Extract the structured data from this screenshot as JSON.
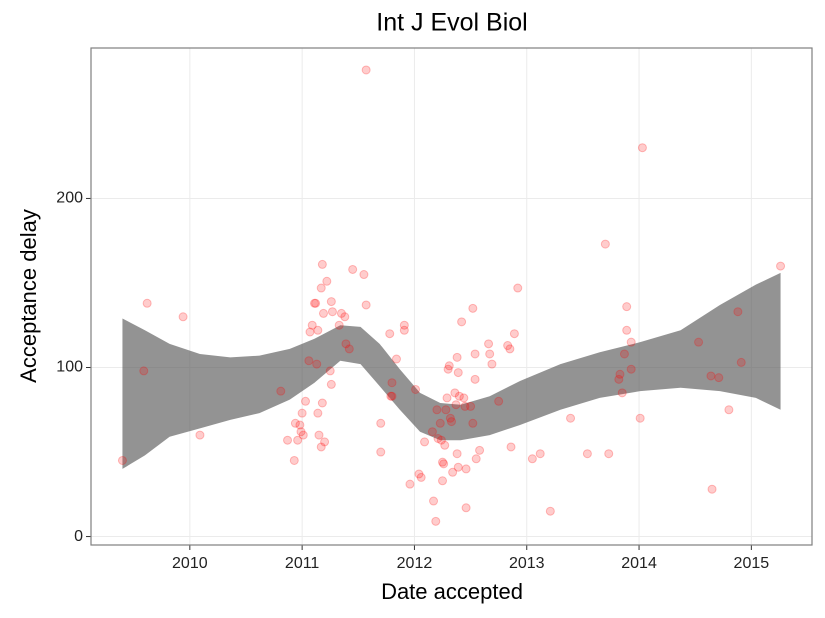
{
  "chart_data": {
    "type": "scatter",
    "title": "Int J Evol Biol",
    "x_label": "Date accepted",
    "y_label": "Acceptance delay",
    "x": [
      2009.4,
      2009.59,
      2009.62,
      2009.94,
      2010.09,
      2010.81,
      2010.87,
      2010.93,
      2010.94,
      2010.96,
      2010.98,
      2011.0,
      2010.99,
      2011.01,
      2011.03,
      2011.06,
      2011.07,
      2011.09,
      2011.11,
      2011.12,
      2011.13,
      2011.14,
      2011.14,
      2011.15,
      2011.17,
      2011.17,
      2011.18,
      2011.18,
      2011.19,
      2011.2,
      2011.22,
      2011.26,
      2011.27,
      2011.25,
      2011.26,
      2011.33,
      2011.35,
      2011.38,
      2011.39,
      2011.42,
      2011.45,
      2011.55,
      2011.57,
      2011.57,
      2011.7,
      2011.7,
      2011.78,
      2011.8,
      2011.79,
      2011.8,
      2011.84,
      2011.91,
      2011.91,
      2011.96,
      2012.01,
      2012.04,
      2012.06,
      2012.09,
      2012.16,
      2012.17,
      2012.19,
      2012.2,
      2012.21,
      2012.23,
      2012.24,
      2012.25,
      2012.26,
      2012.25,
      2012.27,
      2012.28,
      2012.29,
      2012.3,
      2012.31,
      2012.32,
      2012.33,
      2012.34,
      2012.36,
      2012.37,
      2012.38,
      2012.38,
      2012.39,
      2012.39,
      2012.4,
      2012.42,
      2012.44,
      2012.45,
      2012.46,
      2012.46,
      2012.5,
      2012.52,
      2012.52,
      2012.54,
      2012.54,
      2012.55,
      2012.58,
      2012.66,
      2012.67,
      2012.69,
      2012.75,
      2012.83,
      2012.85,
      2012.86,
      2012.89,
      2012.92,
      2013.05,
      2013.12,
      2013.21,
      2013.39,
      2013.54,
      2013.7,
      2013.73,
      2013.82,
      2013.83,
      2013.85,
      2013.87,
      2013.89,
      2013.89,
      2013.93,
      2013.93,
      2014.01,
      2014.03,
      2014.53,
      2014.64,
      2014.65,
      2014.71,
      2014.8,
      2014.88,
      2014.91,
      2015.26
    ],
    "values": [
      45,
      98,
      138,
      130,
      60,
      86,
      57,
      45,
      67,
      57,
      66,
      73,
      62,
      60,
      80,
      104,
      121,
      125,
      138,
      138,
      102,
      122,
      73,
      60,
      53,
      147,
      161,
      79,
      132,
      56,
      151,
      139,
      133,
      98,
      90,
      125,
      132,
      130,
      114,
      111,
      158,
      155,
      137,
      276,
      67,
      50,
      120,
      91,
      83,
      83,
      105,
      125,
      122,
      31,
      87,
      37,
      35,
      56,
      62,
      21,
      9,
      75,
      58,
      67,
      57,
      44,
      43,
      33,
      54,
      75,
      82,
      99,
      101,
      70,
      68,
      38,
      85,
      78,
      49,
      106,
      97,
      41,
      83,
      127,
      82,
      77,
      40,
      17,
      77,
      135,
      67,
      108,
      93,
      46,
      51,
      114,
      108,
      102,
      80,
      113,
      111,
      53,
      120,
      147,
      46,
      49,
      15,
      70,
      49,
      173,
      49,
      93,
      96,
      85,
      108,
      122,
      136,
      115,
      99,
      70,
      230,
      115,
      95,
      28,
      94,
      75,
      133,
      103,
      160
    ],
    "color": "#ff0000",
    "ribbon": {
      "color": "#595959",
      "x": [
        2009.4,
        2009.6,
        2009.82,
        2010.09,
        2010.36,
        2010.62,
        2010.89,
        2011.11,
        2011.34,
        2011.52,
        2011.69,
        2011.87,
        2012.05,
        2012.23,
        2012.41,
        2012.67,
        2012.94,
        2013.3,
        2013.65,
        2014.01,
        2014.37,
        2014.72,
        2015.04,
        2015.26
      ],
      "upper": [
        129,
        122,
        114,
        108,
        106,
        107,
        111,
        117,
        125,
        124,
        114,
        99,
        85,
        79,
        78,
        83,
        92,
        102,
        109,
        115,
        122,
        137,
        149,
        156
      ],
      "lower": [
        40,
        48,
        59,
        64,
        69,
        73,
        81,
        91,
        104,
        102,
        89,
        75,
        62,
        57,
        57,
        60,
        66,
        75,
        82,
        86,
        88,
        86,
        82,
        75
      ]
    },
    "xlim": [
      2009.12,
      2015.54
    ],
    "ylim": [
      -5,
      289
    ],
    "xticks": [
      2010,
      2011,
      2012,
      2013,
      2014,
      2015
    ],
    "yticks": [
      0,
      100,
      200
    ],
    "grid": true
  }
}
